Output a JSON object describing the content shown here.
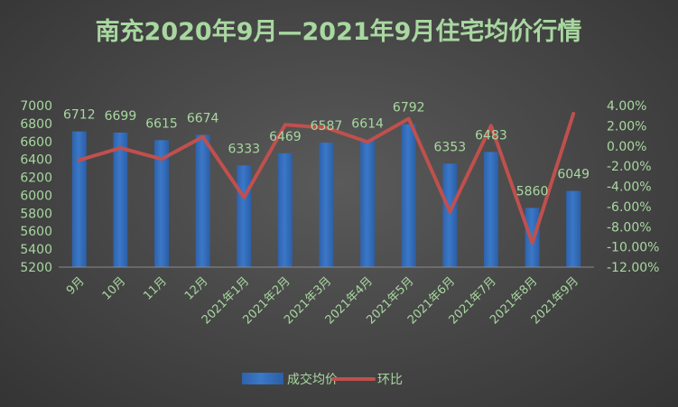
{
  "chart_data": {
    "type": "bar",
    "title": "南充2020年9月—2021年9月住宅均价行情",
    "categories": [
      "9月",
      "10月",
      "11月",
      "12月",
      "2021年1月",
      "2021年2月",
      "2021年3月",
      "2021年4月",
      "2021年5月",
      "2021年6月",
      "2021年7月",
      "2021年8月",
      "2021年9月"
    ],
    "series": [
      {
        "name": "成交均价",
        "type": "bar",
        "axis": "left",
        "values": [
          6712,
          6699,
          6615,
          6674,
          6333,
          6469,
          6587,
          6614,
          6792,
          6353,
          6483,
          5860,
          6049
        ],
        "color": "#3a78c8"
      },
      {
        "name": "环比",
        "type": "line",
        "axis": "right",
        "values": [
          -1.4,
          -0.2,
          -1.3,
          0.9,
          -5.1,
          2.1,
          1.8,
          0.4,
          2.7,
          -6.5,
          2.0,
          -9.6,
          3.2
        ],
        "color": "#c0504d"
      }
    ],
    "left_axis": {
      "min": 5200,
      "max": 7000,
      "step": 200,
      "ticks": [
        "5200",
        "5400",
        "5600",
        "5800",
        "6000",
        "6200",
        "6400",
        "6600",
        "6800",
        "7000"
      ]
    },
    "right_axis": {
      "min": -12,
      "max": 4,
      "step": 2,
      "ticks": [
        "-12.00%",
        "-10.00%",
        "-8.00%",
        "-6.00%",
        "-4.00%",
        "-2.00%",
        "0.00%",
        "2.00%",
        "4.00%"
      ]
    },
    "grid": false,
    "legend_position": "bottom",
    "data_labels": [
      "6712",
      "6699",
      "6615",
      "6674",
      "6333",
      "6469",
      "6587",
      "6614",
      "6792",
      "6353",
      "6483",
      "5860",
      "6049"
    ]
  }
}
